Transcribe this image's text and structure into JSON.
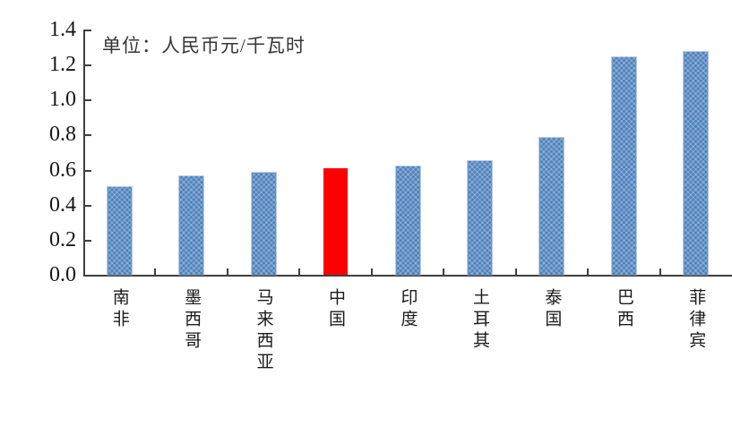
{
  "chart_data": {
    "type": "bar",
    "title": "",
    "annotation": "单位：人民币元/千瓦时",
    "categories": [
      "南非",
      "墨西哥",
      "马来西亚",
      "中国",
      "印度",
      "土耳其",
      "泰国",
      "巴西",
      "菲律宾"
    ],
    "categories_en": [
      "south-africa",
      "mexico",
      "malaysia",
      "china",
      "india",
      "turkey",
      "thailand",
      "brazil",
      "philippines"
    ],
    "values": [
      0.5,
      0.56,
      0.58,
      0.61,
      0.62,
      0.65,
      0.78,
      1.24,
      1.27
    ],
    "highlight_category": "中国",
    "highlight_index": 3,
    "bar_color": "#4f81bd",
    "highlight_color": "#fe0000",
    "xlabel": "",
    "ylabel": "",
    "ylim": [
      0,
      1.4
    ],
    "ytick_step": 0.2,
    "ytick_labels": [
      "0.0",
      "0.2",
      "0.4",
      "0.6",
      "0.8",
      "1.0",
      "1.2",
      "1.4"
    ],
    "grid": "off",
    "legend": "none"
  }
}
